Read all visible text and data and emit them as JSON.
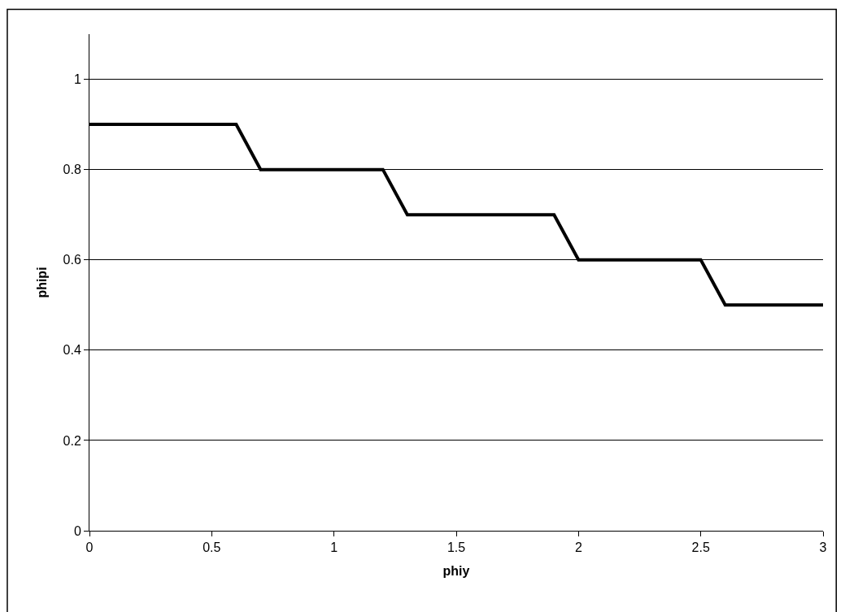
{
  "chart_data": {
    "type": "line",
    "xlabel": "phiy",
    "ylabel": "phipi",
    "x": [
      0,
      0.6,
      0.7,
      1.2,
      1.3,
      1.9,
      2.0,
      2.5,
      2.6,
      3
    ],
    "series": [
      {
        "color": "#000000",
        "values": [
          0.9,
          0.9,
          0.8,
          0.8,
          0.7,
          0.7,
          0.6,
          0.6,
          0.5,
          0.5
        ]
      }
    ],
    "xlim": [
      0,
      3
    ],
    "xticks": [
      0,
      0.5,
      1,
      1.5,
      2,
      2.5,
      3
    ],
    "ylim": [
      0,
      1.1
    ],
    "yticks": [
      0,
      0.2,
      0.4,
      0.6,
      0.8,
      1
    ],
    "grid": "y",
    "marker": "none",
    "line_style": "solid"
  }
}
